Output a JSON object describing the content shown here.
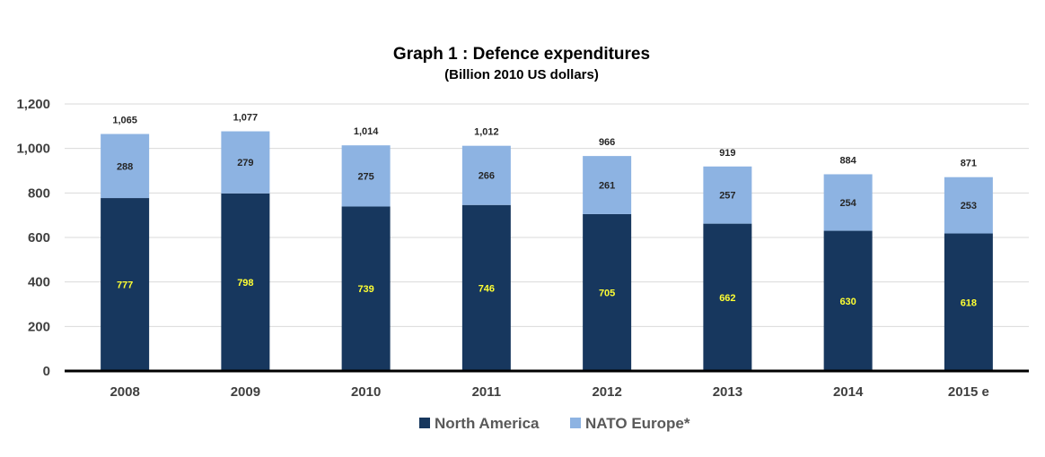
{
  "chart_data": {
    "type": "bar",
    "stacked": true,
    "title": "Graph 1 : Defence expenditures",
    "subtitle": "(Billion 2010 US dollars)",
    "xlabel": "",
    "ylabel": "",
    "categories": [
      "2008",
      "2009",
      "2010",
      "2011",
      "2012",
      "2013",
      "2014",
      "2015 e"
    ],
    "series": [
      {
        "name": "North America",
        "color": "#17375e",
        "label_color": "#ffff33",
        "values": [
          777,
          798,
          739,
          746,
          705,
          662,
          630,
          618
        ]
      },
      {
        "name": "NATO Europe*",
        "color": "#8db3e2",
        "label_color": "#262626",
        "values": [
          288,
          279,
          275,
          266,
          261,
          257,
          254,
          253
        ]
      }
    ],
    "totals": [
      1065,
      1077,
      1014,
      1012,
      966,
      919,
      884,
      871
    ],
    "ylim": [
      0,
      1200
    ],
    "yticks": [
      0,
      200,
      400,
      600,
      800,
      1000,
      1200
    ],
    "grid": true,
    "legend": "bottom"
  }
}
